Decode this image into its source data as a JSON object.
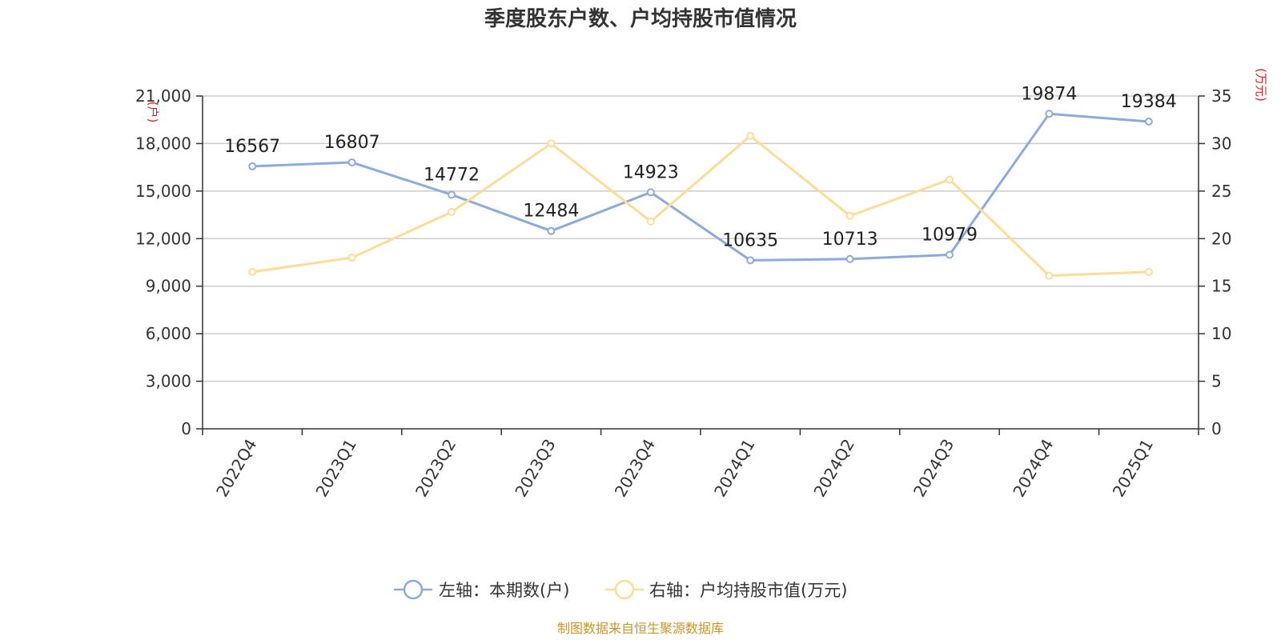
{
  "chart_data": {
    "type": "line",
    "title": "季度股东户数、户均持股市值情况",
    "categories": [
      "2022Q4",
      "2023Q1",
      "2023Q2",
      "2023Q3",
      "2023Q4",
      "2024Q1",
      "2024Q2",
      "2024Q3",
      "2024Q4",
      "2025Q1"
    ],
    "left_axis": {
      "unit": "(户)",
      "ylim": [
        0,
        21000
      ],
      "ticks": [
        "0",
        "3,000",
        "6,000",
        "9,000",
        "12,000",
        "15,000",
        "18,000",
        "21,000"
      ],
      "tick_values": [
        0,
        3000,
        6000,
        9000,
        12000,
        15000,
        18000,
        21000
      ]
    },
    "right_axis": {
      "unit": "(万元)",
      "ylim": [
        0,
        35
      ],
      "ticks": [
        "0",
        "5",
        "10",
        "15",
        "20",
        "25",
        "30",
        "35"
      ],
      "tick_values": [
        0,
        5,
        10,
        15,
        20,
        25,
        30,
        35
      ]
    },
    "series": [
      {
        "name": "左轴：本期数(户)",
        "axis": "left",
        "color": "#8eaadb",
        "values": [
          16567,
          16807,
          14772,
          12484,
          14923,
          10635,
          10713,
          10979,
          19874,
          19384
        ],
        "labels": [
          "16567",
          "16807",
          "14772",
          "12484",
          "14923",
          "10635",
          "10713",
          "10979",
          "19874",
          "19384"
        ]
      },
      {
        "name": "右轴：户均持股市值(万元)",
        "axis": "right",
        "color": "#fddc98",
        "values": [
          16.5,
          18.0,
          22.8,
          30.0,
          21.8,
          30.8,
          22.4,
          26.2,
          16.1,
          16.5
        ]
      }
    ],
    "grid": true,
    "legend_position": "bottom-center"
  },
  "source": "制图数据来自恒生聚源数据库"
}
